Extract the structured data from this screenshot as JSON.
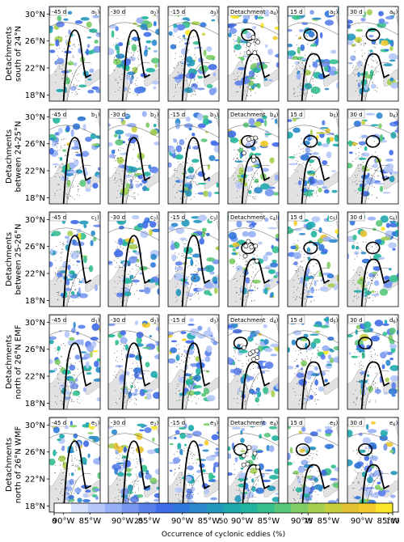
{
  "rows": [
    {
      "label": [
        "Detachments",
        "south of 24°N"
      ],
      "prefix": "a"
    },
    {
      "label": [
        "Detachments",
        "between 24-25°N"
      ],
      "prefix": "b"
    },
    {
      "label": [
        "Detachments",
        "between 25-26°N"
      ],
      "prefix": "c"
    },
    {
      "label": [
        "Detachments",
        "north of 26°N EMF"
      ],
      "prefix": "d"
    },
    {
      "label": [
        "Detachments",
        "north of 26°N WMF"
      ],
      "prefix": "e"
    }
  ],
  "columns": [
    {
      "time_label": "-45 d",
      "index": "1"
    },
    {
      "time_label": "-30 d",
      "index": "2"
    },
    {
      "time_label": "-15 d",
      "index": "3"
    },
    {
      "time_label": "Detachment",
      "index": "4"
    },
    {
      "time_label": "15 d",
      "index": "5"
    },
    {
      "time_label": "30 d",
      "index": "6"
    }
  ],
  "axes": {
    "lat_ticks": [
      "30°N",
      "26°N",
      "22°N",
      "18°N"
    ],
    "lon_ticks": [
      "90°W",
      "85°W"
    ]
  },
  "colorbar": {
    "label": "Occurrence of cyclonic eddies (%)",
    "tick_labels": [
      "0",
      "25",
      "50",
      "75",
      "100"
    ],
    "ticks": [
      0,
      25,
      50,
      75,
      100
    ],
    "range": [
      0,
      100
    ],
    "steps": 20,
    "colors": [
      "#ffffff",
      "#d6e0fb",
      "#b6c8f8",
      "#97b0f5",
      "#7898f0",
      "#5a80ec",
      "#3f6ce8",
      "#3077dc",
      "#2a88cc",
      "#2398bd",
      "#1da8ae",
      "#21b59f",
      "#35c08e",
      "#59c77a",
      "#80cd65",
      "#a6d04f",
      "#c8cf3d",
      "#e3c232",
      "#f3cb2e",
      "#fbe62a"
    ]
  },
  "colors": {
    "land": "#e2e2e2",
    "contour": "#000000",
    "frame": "#000000"
  }
}
